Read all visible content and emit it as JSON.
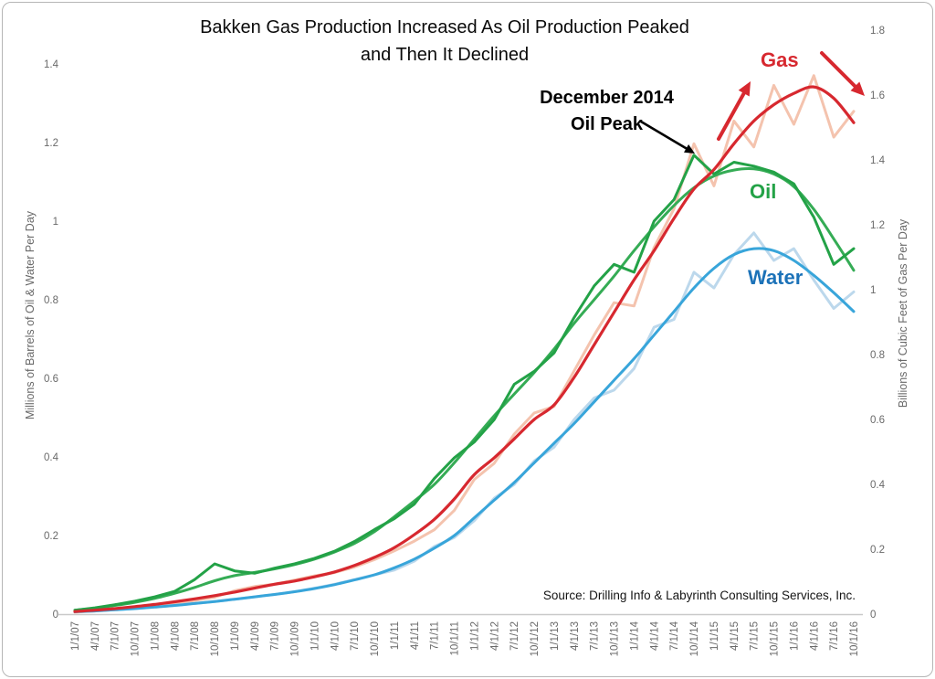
{
  "title": {
    "line1": "Bakken Gas Production Increased As Oil Production Peaked",
    "line2": "and Then It Declined"
  },
  "annotation": {
    "line1": "December 2014",
    "line2": "Oil Peak"
  },
  "source": "Source: Drilling Info & Labyrinth Consulting Services, Inc.",
  "series_labels": {
    "gas": "Gas",
    "oil": "Oil",
    "water": "Water"
  },
  "colors": {
    "gas": "#d7282f",
    "gas_actual": "#f4c3ae",
    "oil": "#23a247",
    "oil_trend": "#35ac55",
    "water": "#38a5da",
    "water_actual": "#bcd8ec",
    "water_label": "#1c72b8",
    "axis_text": "#696969",
    "axis_line": "#c9c9c9",
    "annotation": "#000000"
  },
  "chart_data": {
    "type": "line",
    "title": "Bakken Gas Production Increased As Oil Production Peaked and Then It Declined",
    "xlabel": "",
    "left_axis": {
      "title": "Millions of Barrels of Oil & Water Per Day",
      "tick_labels": [
        "0",
        "0.2",
        "0.4",
        "0.6",
        "0.8",
        "1",
        "1.2",
        "1.4"
      ],
      "range": [
        0,
        1.4
      ]
    },
    "right_axis": {
      "title": "Billions of Cubic Feet of Gas Per Day",
      "tick_labels": [
        "0",
        "0.2",
        "0.4",
        "0.6",
        "0.8",
        "1",
        "1.2",
        "1.4",
        "1.6",
        "1.8"
      ],
      "range": [
        0,
        1.8
      ]
    },
    "x_labels": [
      "1/1/07",
      "4/1/07",
      "7/1/07",
      "10/1/07",
      "1/1/08",
      "4/1/08",
      "7/1/08",
      "10/1/08",
      "1/1/09",
      "4/1/09",
      "7/1/09",
      "10/1/09",
      "1/1/10",
      "4/1/10",
      "7/1/10",
      "10/1/10",
      "1/1/11",
      "4/1/11",
      "7/1/11",
      "10/1/11",
      "1/1/12",
      "4/1/12",
      "7/1/12",
      "10/1/12",
      "1/1/13",
      "4/1/13",
      "7/1/13",
      "10/1/13",
      "1/1/14",
      "4/1/14",
      "7/1/14",
      "10/1/14",
      "1/1/15",
      "4/1/15",
      "7/1/15",
      "10/1/15",
      "1/1/16",
      "4/1/16",
      "7/1/16",
      "10/1/16"
    ],
    "grid": false,
    "legend": "inline-labels",
    "series": [
      {
        "id": "gas-actual",
        "name": "Gas (monthly)",
        "axis": "right",
        "color": "#f4c3ae",
        "width": 3,
        "smooth": false,
        "values": [
          0.006,
          0.01,
          0.015,
          0.02,
          0.027,
          0.034,
          0.042,
          0.052,
          0.072,
          0.085,
          0.092,
          0.105,
          0.118,
          0.128,
          0.145,
          0.168,
          0.195,
          0.225,
          0.26,
          0.32,
          0.415,
          0.465,
          0.555,
          0.62,
          0.64,
          0.75,
          0.86,
          0.96,
          0.95,
          1.13,
          1.25,
          1.45,
          1.32,
          1.52,
          1.44,
          1.63,
          1.51,
          1.66,
          1.47,
          1.55
        ]
      },
      {
        "id": "water-actual",
        "name": "Water (monthly)",
        "axis": "left",
        "color": "#bcd8ec",
        "width": 3,
        "smooth": false,
        "values": [
          0.006,
          0.008,
          0.011,
          0.014,
          0.018,
          0.022,
          0.027,
          0.032,
          0.038,
          0.044,
          0.05,
          0.057,
          0.066,
          0.076,
          0.088,
          0.1,
          0.112,
          0.135,
          0.172,
          0.195,
          0.238,
          0.295,
          0.33,
          0.39,
          0.425,
          0.495,
          0.55,
          0.57,
          0.625,
          0.73,
          0.75,
          0.87,
          0.83,
          0.915,
          0.97,
          0.9,
          0.93,
          0.85,
          0.778,
          0.82
        ]
      },
      {
        "id": "water-trend",
        "name": "Water (trend)",
        "axis": "left",
        "color": "#38a5da",
        "width": 3,
        "smooth": true,
        "values": [
          0.006,
          0.008,
          0.011,
          0.014,
          0.018,
          0.022,
          0.027,
          0.032,
          0.038,
          0.044,
          0.05,
          0.057,
          0.065,
          0.075,
          0.087,
          0.1,
          0.118,
          0.14,
          0.168,
          0.2,
          0.245,
          0.29,
          0.335,
          0.385,
          0.435,
          0.485,
          0.54,
          0.595,
          0.65,
          0.71,
          0.77,
          0.83,
          0.88,
          0.915,
          0.93,
          0.925,
          0.9,
          0.862,
          0.818,
          0.77
        ]
      },
      {
        "id": "oil-trend",
        "name": "Oil (trend)",
        "axis": "left",
        "color": "#35ac55",
        "width": 3,
        "smooth": true,
        "values": [
          0.01,
          0.015,
          0.022,
          0.03,
          0.04,
          0.053,
          0.068,
          0.085,
          0.098,
          0.106,
          0.115,
          0.126,
          0.14,
          0.158,
          0.18,
          0.21,
          0.248,
          0.288,
          0.33,
          0.385,
          0.445,
          0.505,
          0.56,
          0.615,
          0.675,
          0.74,
          0.8,
          0.86,
          0.925,
          0.985,
          1.04,
          1.085,
          1.115,
          1.13,
          1.133,
          1.12,
          1.088,
          1.03,
          0.955,
          0.875
        ]
      },
      {
        "id": "oil-actual",
        "name": "Oil (monthly)",
        "axis": "left",
        "color": "#23a247",
        "width": 3,
        "smooth": false,
        "values": [
          0.01,
          0.016,
          0.024,
          0.033,
          0.044,
          0.058,
          0.088,
          0.128,
          0.11,
          0.104,
          0.117,
          0.128,
          0.142,
          0.16,
          0.185,
          0.215,
          0.243,
          0.28,
          0.345,
          0.398,
          0.438,
          0.495,
          0.585,
          0.618,
          0.665,
          0.755,
          0.835,
          0.89,
          0.87,
          1.0,
          1.055,
          1.168,
          1.12,
          1.15,
          1.14,
          1.125,
          1.095,
          1.01,
          0.89,
          0.93
        ]
      },
      {
        "id": "gas-trend",
        "name": "Gas (trend)",
        "axis": "right",
        "color": "#d7282f",
        "width": 3.2,
        "smooth": true,
        "values": [
          0.008,
          0.012,
          0.017,
          0.023,
          0.03,
          0.038,
          0.047,
          0.057,
          0.068,
          0.08,
          0.092,
          0.102,
          0.115,
          0.13,
          0.15,
          0.175,
          0.205,
          0.245,
          0.292,
          0.355,
          0.43,
          0.482,
          0.54,
          0.6,
          0.645,
          0.73,
          0.83,
          0.93,
          1.03,
          1.12,
          1.22,
          1.31,
          1.37,
          1.45,
          1.52,
          1.57,
          1.605,
          1.625,
          1.59,
          1.515
        ]
      }
    ],
    "arrows": [
      {
        "id": "oil-peak-arrow",
        "color": "#000000",
        "width": 2.6,
        "head": 11,
        "from": [
          702,
          133
        ],
        "to": [
          761,
          168
        ]
      },
      {
        "id": "gas-rise-arrow",
        "color": "#d7282f",
        "width": 4,
        "head": 15,
        "from": [
          787,
          152
        ],
        "to": [
          822,
          89
        ]
      },
      {
        "id": "gas-fall-arrow",
        "color": "#d7282f",
        "width": 4,
        "head": 15,
        "from": [
          900,
          58
        ],
        "to": [
          947,
          105
        ]
      }
    ]
  }
}
